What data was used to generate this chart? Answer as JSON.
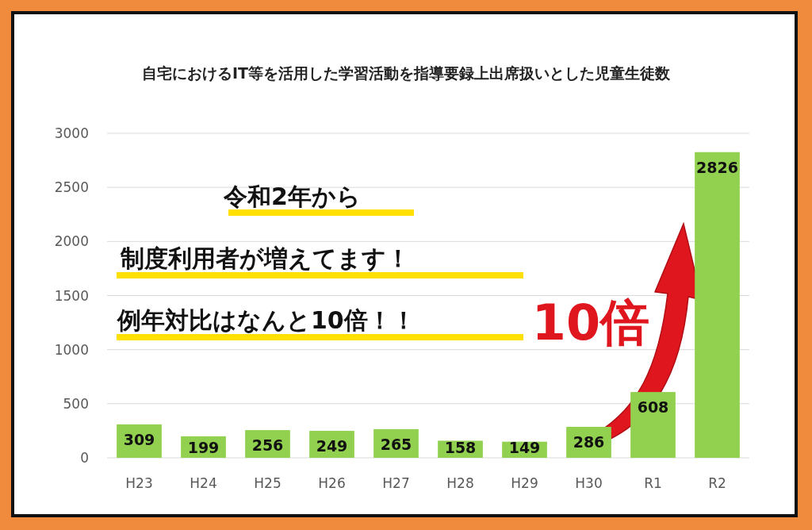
{
  "chart_data": {
    "type": "bar",
    "title": "自宅におけるIT等を活用した学習活動を指導要録上出席扱いとした児童生徒数",
    "categories": [
      "H23",
      "H24",
      "H25",
      "H26",
      "H27",
      "H28",
      "H29",
      "H30",
      "R1",
      "R2"
    ],
    "values": [
      309,
      199,
      256,
      249,
      265,
      158,
      149,
      286,
      608,
      2826
    ],
    "color": "#92d050",
    "ylim": [
      0,
      3000
    ],
    "yticks": [
      0,
      500,
      1000,
      1500,
      2000,
      2500,
      3000
    ],
    "grid": "y",
    "data_labels": true,
    "annotations": [
      "令和2年から",
      "制度利用者が増えてます！",
      "例年対比はなんと10倍！！",
      "10倍"
    ]
  }
}
